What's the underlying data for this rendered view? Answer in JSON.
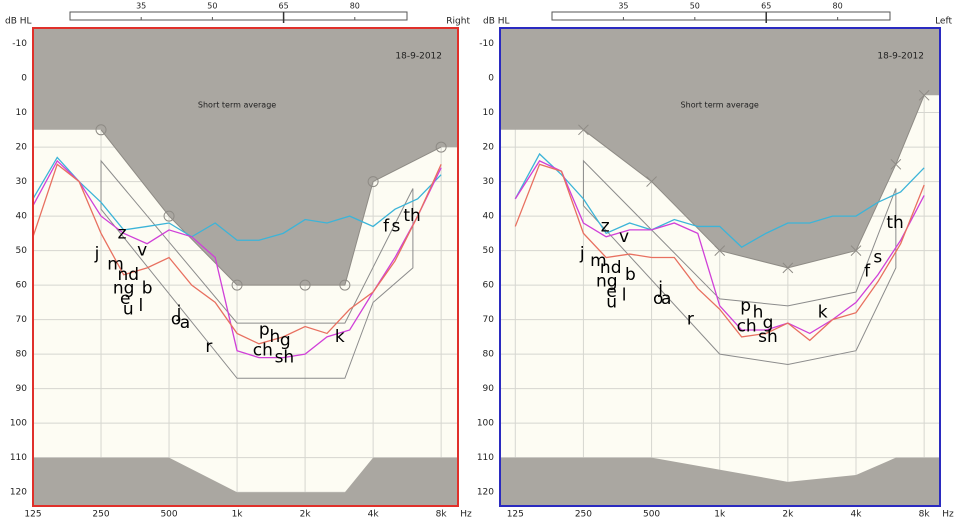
{
  "chart_data": [
    {
      "type": "line",
      "side": "Right",
      "date": "18-9-2012",
      "annotation": "Short term average",
      "y_label": "dB HL",
      "x_label": "Hz",
      "frame_color": "#e0302a",
      "log_x": true,
      "grid": true,
      "xlim": [
        125,
        9500
      ],
      "ylim": [
        -14.5,
        124
      ],
      "xticks": [
        125,
        250,
        500,
        {
          "value": 1000,
          "label": "1k"
        },
        {
          "value": 2000,
          "label": "2k"
        },
        {
          "value": 4000,
          "label": "4k"
        },
        {
          "value": 8000,
          "label": "8k"
        }
      ],
      "yticks": [
        -10,
        0,
        10,
        20,
        30,
        40,
        50,
        60,
        70,
        80,
        90,
        100,
        110,
        120
      ],
      "scale": {
        "lim": [
          20,
          91
        ],
        "ticks": [
          35,
          50,
          65,
          80
        ],
        "value": 65
      },
      "x": [
        125,
        160,
        200,
        250,
        315,
        400,
        500,
        630,
        800,
        1000,
        1250,
        1600,
        2000,
        2500,
        3150,
        4000,
        5000,
        6300,
        8000
      ],
      "series": [
        {
          "color": "#3cb4d8",
          "values": [
            35,
            23,
            30,
            36,
            44,
            43,
            42,
            46,
            42,
            47,
            47,
            45,
            41,
            42,
            40,
            43,
            38,
            35,
            28
          ]
        },
        {
          "color": "#d040d8",
          "values": [
            37,
            24,
            30,
            40,
            45,
            48,
            44,
            46,
            52,
            79,
            81,
            81,
            80,
            75,
            73,
            62,
            52,
            40,
            26
          ]
        },
        {
          "color": "#e87060",
          "values": [
            46,
            25,
            30,
            45,
            57,
            55,
            52,
            60,
            65,
            74,
            77,
            75,
            72,
            74,
            67,
            62,
            53,
            40,
            25
          ]
        }
      ],
      "threshold": {
        "marker": "circle",
        "color": "#aaa7a1",
        "x": [
          250,
          500,
          1000,
          2000,
          3000,
          4000,
          8000
        ],
        "values": [
          15,
          40,
          60,
          60,
          60,
          30,
          20
        ]
      },
      "max_output": {
        "color": "#aaa7a1",
        "x": [
          125,
          500,
          1000,
          3000,
          4000,
          8000
        ],
        "values": [
          110,
          110,
          120,
          120,
          110,
          110
        ]
      },
      "speech_range": {
        "color": "#8c8c8c",
        "x": [
          250,
          1000,
          3000,
          6000,
          6000,
          4000,
          3000,
          1000,
          250
        ],
        "values": [
          24,
          71,
          71,
          32,
          55,
          65,
          87,
          87,
          38
        ]
      },
      "phonemes": [
        {
          "label": "j",
          "x": 240,
          "y": 51
        },
        {
          "label": "m",
          "x": 290,
          "y": 54
        },
        {
          "label": "nd",
          "x": 330,
          "y": 57
        },
        {
          "label": "ng",
          "x": 315,
          "y": 61
        },
        {
          "label": "e",
          "x": 320,
          "y": 64
        },
        {
          "label": "u",
          "x": 330,
          "y": 67
        },
        {
          "label": "l",
          "x": 375,
          "y": 66
        },
        {
          "label": "b",
          "x": 400,
          "y": 61
        },
        {
          "label": "z",
          "x": 310,
          "y": 45
        },
        {
          "label": "v",
          "x": 380,
          "y": 50
        },
        {
          "label": "j",
          "x": 553,
          "y": 68
        },
        {
          "label": "o",
          "x": 537,
          "y": 70
        },
        {
          "label": "a",
          "x": 588,
          "y": 71
        },
        {
          "label": "r",
          "x": 750,
          "y": 78
        },
        {
          "label": "p",
          "x": 1320,
          "y": 73
        },
        {
          "label": "h",
          "x": 1470,
          "y": 75
        },
        {
          "label": "ch",
          "x": 1300,
          "y": 79
        },
        {
          "label": "g",
          "x": 1635,
          "y": 76
        },
        {
          "label": "sh",
          "x": 1620,
          "y": 81
        },
        {
          "label": "k",
          "x": 2850,
          "y": 75
        },
        {
          "label": "f",
          "x": 4570,
          "y": 43
        },
        {
          "label": "s",
          "x": 5050,
          "y": 43
        },
        {
          "label": "th",
          "x": 5950,
          "y": 40
        }
      ]
    },
    {
      "type": "line",
      "side": "Left",
      "date": "18-9-2012",
      "annotation": "Short term average",
      "y_label": "dB HL",
      "x_label": "Hz",
      "frame_color": "#2a2ac0",
      "log_x": true,
      "grid": true,
      "xlim": [
        107,
        9400
      ],
      "ylim": [
        -14.5,
        124
      ],
      "xticks": [
        125,
        250,
        500,
        {
          "value": 1000,
          "label": "1k"
        },
        {
          "value": 2000,
          "label": "2k"
        },
        {
          "value": 4000,
          "label": "4k"
        },
        {
          "value": 8000,
          "label": "8k"
        }
      ],
      "yticks": [
        -10,
        0,
        10,
        20,
        30,
        40,
        50,
        60,
        70,
        80,
        90,
        100,
        110,
        120
      ],
      "scale": {
        "lim": [
          20,
          91
        ],
        "ticks": [
          35,
          50,
          65,
          80
        ],
        "value": 65
      },
      "x": [
        125,
        160,
        200,
        250,
        315,
        400,
        500,
        630,
        800,
        1000,
        1250,
        1600,
        2000,
        2500,
        3150,
        4000,
        5000,
        6300,
        8000
      ],
      "series": [
        {
          "color": "#3cb4d8",
          "values": [
            35,
            22,
            28,
            35,
            45,
            42,
            44,
            41,
            43,
            43,
            49,
            45,
            42,
            42,
            40,
            40,
            36,
            33,
            26
          ]
        },
        {
          "color": "#d040d8",
          "values": [
            35,
            24,
            27,
            42,
            46,
            44,
            44,
            42,
            45,
            66,
            73,
            73,
            71,
            74,
            70,
            65,
            57,
            47,
            34
          ]
        },
        {
          "color": "#e87060",
          "values": [
            43,
            25,
            27,
            45,
            52,
            51,
            52,
            52,
            61,
            67,
            75,
            74,
            71,
            76,
            70,
            68,
            59,
            48,
            31
          ]
        }
      ],
      "threshold": {
        "marker": "cross",
        "color": "#aaa7a1",
        "x": [
          250,
          500,
          1000,
          2000,
          4000,
          6000,
          8000
        ],
        "values": [
          15,
          30,
          50,
          55,
          50,
          25,
          5
        ]
      },
      "max_output": {
        "color": "#aaa7a1",
        "x": [
          125,
          500,
          2000,
          4000,
          6000,
          8000
        ],
        "values": [
          110,
          110,
          117,
          115,
          110,
          110
        ]
      },
      "speech_range": {
        "color": "#8c8c8c",
        "x": [
          250,
          1000,
          2000,
          4000,
          6000,
          6000,
          4000,
          2000,
          1000,
          250
        ],
        "values": [
          24,
          64,
          66,
          62,
          32,
          55,
          79,
          83,
          80,
          37
        ]
      },
      "phonemes": [
        {
          "label": "j",
          "x": 247,
          "y": 51
        },
        {
          "label": "m",
          "x": 291,
          "y": 53
        },
        {
          "label": "nd",
          "x": 330,
          "y": 55
        },
        {
          "label": "ng",
          "x": 317,
          "y": 59
        },
        {
          "label": "e",
          "x": 333,
          "y": 62
        },
        {
          "label": "u",
          "x": 333,
          "y": 65
        },
        {
          "label": "l",
          "x": 378,
          "y": 63
        },
        {
          "label": "b",
          "x": 403,
          "y": 57
        },
        {
          "label": "z",
          "x": 312,
          "y": 43
        },
        {
          "label": "v",
          "x": 378,
          "y": 46
        },
        {
          "label": "j",
          "x": 548,
          "y": 61
        },
        {
          "label": "o",
          "x": 535,
          "y": 64
        },
        {
          "label": "a",
          "x": 580,
          "y": 64
        },
        {
          "label": "r",
          "x": 742,
          "y": 70
        },
        {
          "label": "p",
          "x": 1302,
          "y": 66
        },
        {
          "label": "h",
          "x": 1476,
          "y": 68
        },
        {
          "label": "ch",
          "x": 1315,
          "y": 72
        },
        {
          "label": "g",
          "x": 1634,
          "y": 71
        },
        {
          "label": "sh",
          "x": 1634,
          "y": 75
        },
        {
          "label": "k",
          "x": 2850,
          "y": 68
        },
        {
          "label": "f",
          "x": 4480,
          "y": 56
        },
        {
          "label": "s",
          "x": 4990,
          "y": 52
        },
        {
          "label": "th",
          "x": 5950,
          "y": 42
        }
      ]
    }
  ]
}
